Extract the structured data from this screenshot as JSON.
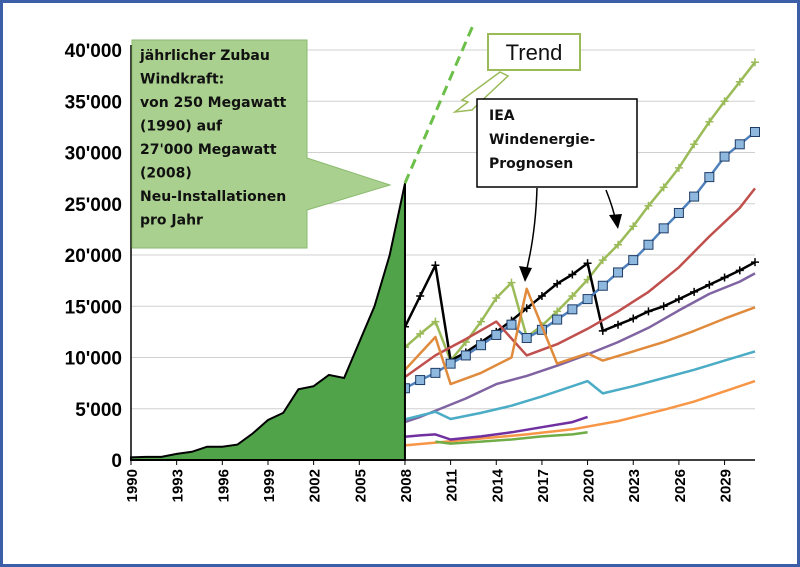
{
  "chart_data": {
    "type": "line",
    "x_ticks": [
      "1990",
      "1993",
      "1996",
      "1999",
      "2002",
      "2005",
      "2008",
      "2011",
      "2014",
      "2017",
      "2020",
      "2023",
      "2026",
      "2029"
    ],
    "y_ticks": [
      "0",
      "5'000",
      "10'000",
      "15'000",
      "20'000",
      "25'000",
      "30'000",
      "35'000",
      "40'000"
    ],
    "xlim": [
      1990,
      2031
    ],
    "ylim": [
      0,
      40000
    ],
    "annotation_box": {
      "lines": [
        "jährlicher Zubau",
        "Windkraft:",
        "von 250 Megawatt",
        "(1990) auf",
        "27'000 Megawatt",
        "(2008)",
        "Neu-Installationen",
        "pro Jahr"
      ]
    },
    "trend_label": "Trend",
    "iea_label": [
      "IEA",
      "Windenergie-",
      "Prognosen"
    ],
    "historical": {
      "x": [
        1990,
        1991,
        1992,
        1993,
        1994,
        1995,
        1996,
        1997,
        1998,
        1999,
        2000,
        2001,
        2002,
        2003,
        2004,
        2005,
        2006,
        2007,
        2008
      ],
      "y": [
        250,
        300,
        300,
        600,
        800,
        1300,
        1300,
        1500,
        2600,
        3900,
        4600,
        6900,
        7200,
        8300,
        8000,
        11500,
        15000,
        20000,
        27000
      ]
    },
    "trend_line": {
      "x": [
        2008,
        2012.5
      ],
      "y": [
        27000,
        42500
      ]
    },
    "series": [
      {
        "color": "#9bbb59",
        "marker": "plus",
        "x": [
          2004,
          2005,
          2006,
          2007,
          2008,
          2009,
          2010,
          2011,
          2012,
          2013,
          2014,
          2015,
          2016,
          2017,
          2018,
          2019,
          2020,
          2021,
          2022,
          2023,
          2024,
          2025,
          2026,
          2027,
          2028,
          2029,
          2030,
          2031
        ],
        "y": [
          5900,
          7100,
          8500,
          9700,
          11000,
          12300,
          13500,
          9700,
          11500,
          13500,
          15800,
          17300,
          12000,
          13100,
          14500,
          16000,
          17600,
          19500,
          21000,
          22800,
          24800,
          26600,
          28500,
          30800,
          33000,
          35000,
          36900,
          38800
        ]
      },
      {
        "color": "#000000",
        "marker": "plus",
        "x": [
          2004,
          2005,
          2006,
          2007,
          2008,
          2009,
          2010,
          2011,
          2012,
          2013,
          2014,
          2015,
          2016,
          2017,
          2018,
          2019,
          2020,
          2021,
          2022,
          2023,
          2024,
          2025,
          2026,
          2027,
          2028,
          2029,
          2030,
          2031
        ],
        "y": [
          7100,
          8300,
          9800,
          11200,
          13000,
          16000,
          19000,
          9700,
          10500,
          11500,
          12500,
          13600,
          14800,
          16000,
          17200,
          18100,
          19200,
          12600,
          13200,
          13800,
          14500,
          15000,
          15700,
          16400,
          17100,
          17800,
          18500,
          19300
        ]
      },
      {
        "color": "#4f81bd",
        "marker": "square",
        "x": [
          2007,
          2008,
          2009,
          2010,
          2011,
          2012,
          2013,
          2014,
          2015,
          2016,
          2017,
          2018,
          2019,
          2020,
          2021,
          2022,
          2023,
          2024,
          2025,
          2026,
          2027,
          2028,
          2029,
          2030,
          2031
        ],
        "y": [
          6500,
          7000,
          7800,
          8500,
          9400,
          10200,
          11200,
          12200,
          13200,
          11900,
          12700,
          13700,
          14700,
          15700,
          17000,
          18300,
          19500,
          21000,
          22600,
          24100,
          25700,
          27600,
          29600,
          30800,
          32000
        ]
      },
      {
        "color": "#c0504d",
        "x": [
          2000,
          2002,
          2004,
          2006,
          2008,
          2010,
          2012,
          2014,
          2016,
          2018,
          2020,
          2022,
          2024,
          2026,
          2028,
          2030,
          2031
        ],
        "y": [
          2100,
          3000,
          4400,
          6100,
          8100,
          10200,
          11800,
          13500,
          10200,
          11300,
          12800,
          14500,
          16400,
          18800,
          21800,
          24600,
          26500
        ]
      },
      {
        "color": "#8064a2",
        "x": [
          2000,
          2003,
          2006,
          2009,
          2012,
          2014,
          2016,
          2018,
          2020,
          2022,
          2024,
          2026,
          2028,
          2030,
          2031
        ],
        "y": [
          1100,
          1700,
          2700,
          4200,
          6000,
          7400,
          8200,
          9200,
          10300,
          11500,
          12900,
          14600,
          16200,
          17400,
          18200
        ]
      },
      {
        "color": "#e08a3c",
        "x": [
          2003,
          2006,
          2008,
          2010,
          2011,
          2013,
          2015,
          2016,
          2018,
          2020,
          2021,
          2023,
          2025,
          2027,
          2029,
          2031
        ],
        "y": [
          5000,
          7000,
          8800,
          12000,
          7400,
          8500,
          10000,
          16700,
          9400,
          10400,
          9700,
          10600,
          11500,
          12600,
          13800,
          14900
        ]
      },
      {
        "color": "#4bacc6",
        "x": [
          1995,
          1998,
          2001,
          2004,
          2007,
          2010,
          2011,
          2013,
          2015,
          2017,
          2020,
          2021,
          2023,
          2025,
          2027,
          2029,
          2031
        ],
        "y": [
          500,
          1100,
          1800,
          2700,
          3600,
          4700,
          4000,
          4600,
          5300,
          6200,
          7700,
          6500,
          7200,
          8000,
          8800,
          9700,
          10600
        ]
      },
      {
        "color": "#f79646",
        "x": [
          2007,
          2010,
          2013,
          2016,
          2019,
          2022,
          2025,
          2027,
          2029,
          2031
        ],
        "y": [
          1300,
          1700,
          2100,
          2500,
          3000,
          3800,
          4900,
          5700,
          6700,
          7700
        ]
      },
      {
        "color": "#7030a0",
        "x": [
          2000,
          2003,
          2006,
          2009,
          2010,
          2011,
          2013,
          2015,
          2017,
          2019,
          2020
        ],
        "y": [
          1100,
          1500,
          2000,
          2400,
          2500,
          2000,
          2300,
          2700,
          3200,
          3700,
          4200
        ]
      },
      {
        "color": "#70ad47",
        "x": [
          2010,
          2011,
          2013,
          2015,
          2017,
          2019,
          2020
        ],
        "y": [
          1800,
          1600,
          1800,
          2000,
          2300,
          2500,
          2700
        ]
      }
    ]
  }
}
